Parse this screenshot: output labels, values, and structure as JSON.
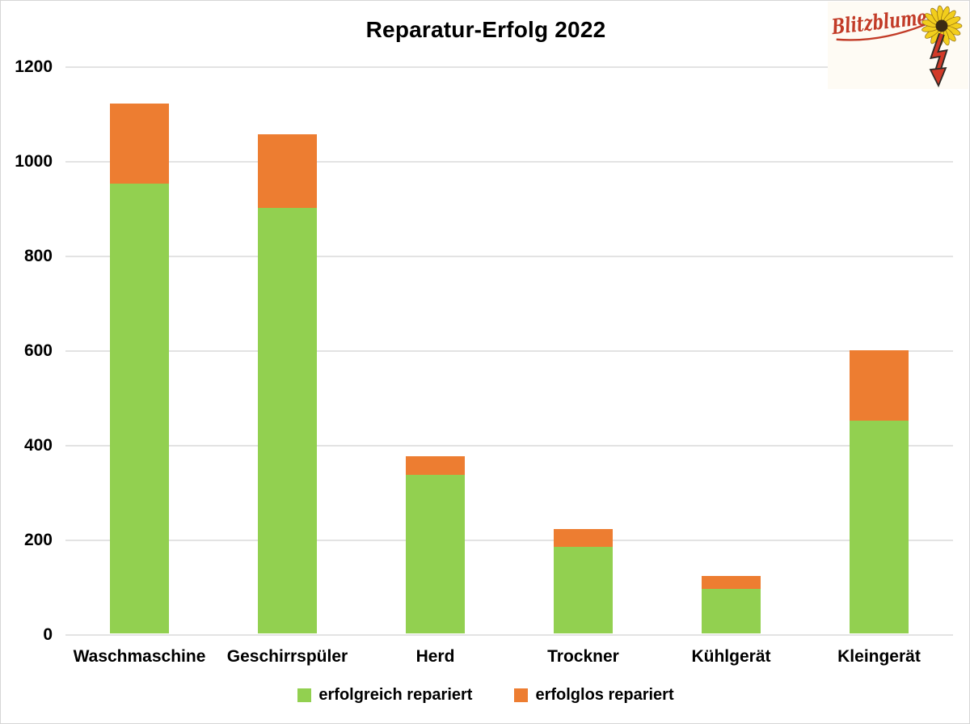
{
  "title": "Reparatur-Erfolg 2022",
  "logo": {
    "text": "Blitzblume"
  },
  "colors": {
    "green": "#92D050",
    "orange": "#ED7D31",
    "gridline": "#E3E3E3",
    "logo_background": "#FEFBF4",
    "logo_red": "#C23B27",
    "flower_yellow": "#F2CE1C",
    "flower_center": "#3B2B13"
  },
  "chart_data": {
    "type": "bar",
    "stacked": true,
    "title": "Reparatur-Erfolg 2022",
    "categories": [
      "Waschmaschine",
      "Geschirrspüler",
      "Herd",
      "Trockner",
      "Kühlgerät",
      "Kleingerät"
    ],
    "series": [
      {
        "name": "erfolgreich repariert",
        "color": "#92D050",
        "values": [
          950,
          900,
          335,
          183,
          94,
          449
        ]
      },
      {
        "name": "erfolglos repariert",
        "color": "#ED7D31",
        "values": [
          170,
          155,
          40,
          37,
          28,
          149
        ]
      }
    ],
    "totals": [
      1120,
      1055,
      375,
      220,
      122,
      598
    ],
    "xlabel": "",
    "ylabel": "",
    "ylim": [
      0,
      1200
    ],
    "yticks": [
      0,
      200,
      400,
      600,
      800,
      1000,
      1200
    ],
    "grid": true,
    "legend_position": "bottom"
  }
}
